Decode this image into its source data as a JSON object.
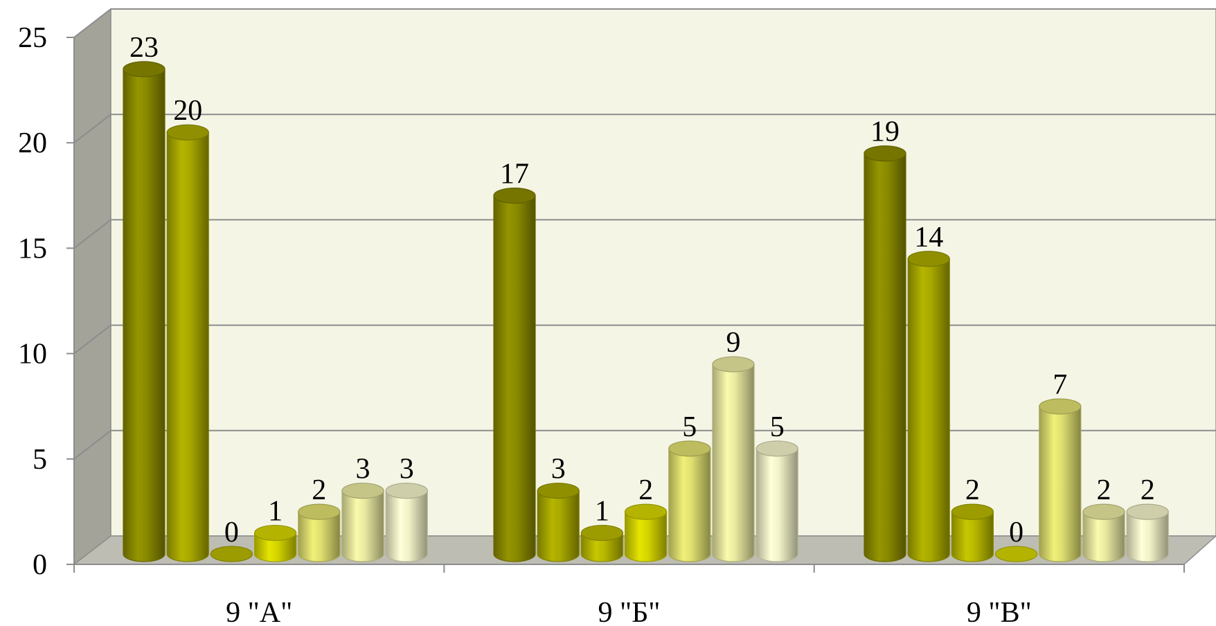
{
  "chart_data": {
    "type": "bar",
    "style": "3d-cylinder",
    "categories": [
      "9 \"А\"",
      "9 \"Б\"",
      "9 \"В\""
    ],
    "series": [
      {
        "values": [
          23,
          17,
          19
        ],
        "color": "#8a8a00"
      },
      {
        "values": [
          20,
          3,
          14
        ],
        "color": "#a8a800"
      },
      {
        "values": [
          0,
          1,
          2
        ],
        "color": "#b8b800"
      },
      {
        "values": [
          1,
          2,
          0
        ],
        "color": "#d4d400"
      },
      {
        "values": [
          2,
          5,
          7
        ],
        "color": "#dede70"
      },
      {
        "values": [
          3,
          9,
          2
        ],
        "color": "#e8e8a0"
      },
      {
        "values": [
          3,
          5,
          2
        ],
        "color": "#f2f2c8"
      }
    ],
    "y_ticks": [
      "0",
      "5",
      "10",
      "15",
      "20",
      "25"
    ],
    "ylim": [
      0,
      25
    ],
    "grid": true,
    "legend": "none",
    "title": "",
    "xlabel": "",
    "ylabel": "",
    "colors": {
      "back_wall": "#f5f5e6",
      "side_wall": "#a3a39a",
      "floor": "#bdbdb3",
      "grid": "#8c8c8c"
    }
  }
}
